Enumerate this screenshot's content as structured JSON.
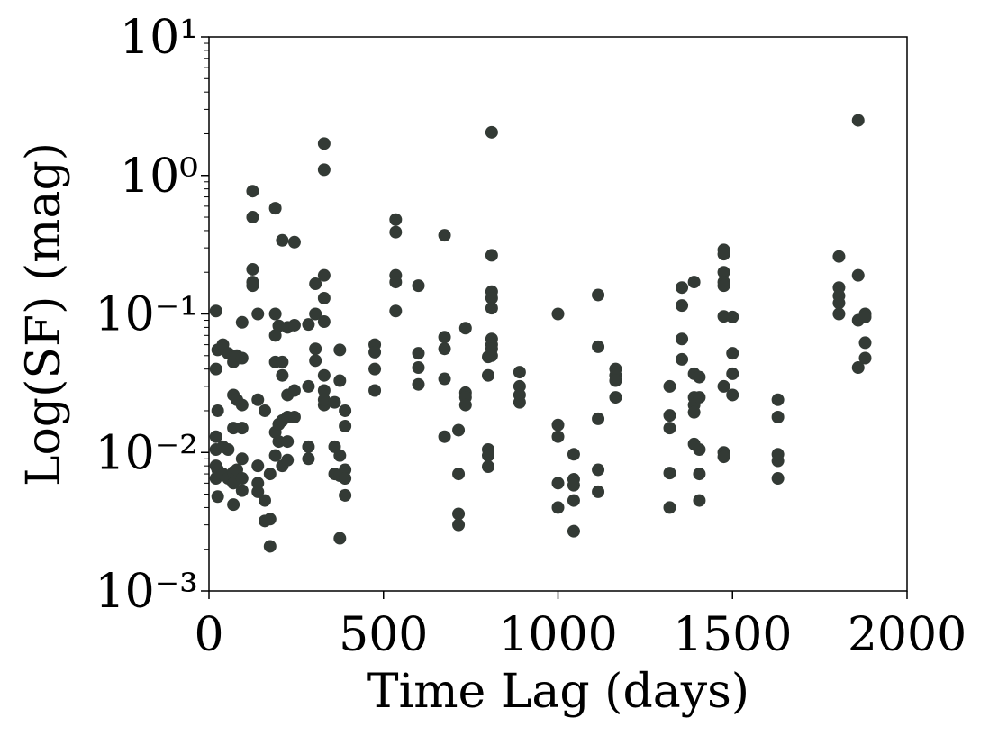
{
  "chart_data": {
    "type": "scatter",
    "xlabel": "Time Lag (days)",
    "ylabel": "Log(SF) (mag)",
    "xlim": [
      0,
      2000
    ],
    "xticks": [
      0,
      500,
      1000,
      1500,
      2000
    ],
    "ylim": [
      0.001,
      10
    ],
    "yscale": "log",
    "yticks": [
      {
        "value": 0.001,
        "label": "10⁻³"
      },
      {
        "value": 0.01,
        "label": "10⁻²"
      },
      {
        "value": 0.1,
        "label": "10⁻¹"
      },
      {
        "value": 1,
        "label": "10⁰"
      },
      {
        "value": 10,
        "label": "10¹"
      }
    ],
    "color": "#333a35",
    "x": [
      20,
      20,
      20,
      20,
      20,
      20,
      25,
      25,
      25,
      25,
      40,
      40,
      40,
      55,
      55,
      55,
      70,
      70,
      70,
      70,
      70,
      70,
      80,
      80,
      80,
      95,
      95,
      95,
      95,
      95,
      95,
      95,
      125,
      125,
      125,
      125,
      125,
      140,
      140,
      140,
      140,
      140,
      160,
      160,
      160,
      175,
      175,
      175,
      190,
      190,
      190,
      190,
      190,
      190,
      200,
      200,
      200,
      210,
      210,
      210,
      210,
      210,
      225,
      225,
      225,
      225,
      225,
      245,
      245,
      245,
      245,
      285,
      285,
      285,
      285,
      305,
      305,
      305,
      305,
      330,
      330,
      330,
      330,
      330,
      330,
      330,
      330,
      330,
      360,
      360,
      360,
      375,
      375,
      375,
      375,
      375,
      390,
      390,
      390,
      390,
      390,
      475,
      475,
      475,
      475,
      535,
      535,
      535,
      535,
      535,
      600,
      600,
      600,
      600,
      675,
      675,
      675,
      675,
      675,
      715,
      715,
      715,
      715,
      735,
      735,
      735,
      735,
      800,
      800,
      800,
      800,
      800,
      810,
      810,
      810,
      810,
      810,
      810,
      810,
      810,
      810,
      890,
      890,
      890,
      890,
      1000,
      1000,
      1000,
      1000,
      1000,
      1045,
      1045,
      1045,
      1045,
      1045,
      1115,
      1115,
      1115,
      1115,
      1115,
      1165,
      1165,
      1165,
      1165,
      1320,
      1320,
      1320,
      1320,
      1320,
      1355,
      1355,
      1355,
      1355,
      1390,
      1390,
      1390,
      1390,
      1390,
      1390,
      1405,
      1405,
      1405,
      1405,
      1405,
      1475,
      1475,
      1475,
      1475,
      1475,
      1475,
      1475,
      1475,
      1475,
      1500,
      1500,
      1500,
      1500,
      1630,
      1630,
      1630,
      1630,
      1630,
      1805,
      1805,
      1805,
      1805,
      1805,
      1860,
      1860,
      1860,
      1860,
      1880,
      1880,
      1880,
      1880
    ],
    "values": [
      0.105,
      0.04,
      0.013,
      0.0105,
      0.0065,
      0.008,
      0.055,
      0.02,
      0.0075,
      0.0048,
      0.06,
      0.011,
      0.007,
      0.052,
      0.0105,
      0.0065,
      0.045,
      0.026,
      0.015,
      0.0072,
      0.0042,
      0.006,
      0.05,
      0.024,
      0.0075,
      0.087,
      0.048,
      0.022,
      0.015,
      0.009,
      0.0065,
      0.0053,
      0.77,
      0.5,
      0.21,
      0.17,
      0.16,
      0.1,
      0.024,
      0.008,
      0.006,
      0.0052,
      0.02,
      0.0045,
      0.0032,
      0.007,
      0.0033,
      0.0021,
      0.1,
      0.045,
      0.014,
      0.0095,
      0.58,
      0.07,
      0.082,
      0.016,
      0.012,
      0.34,
      0.045,
      0.036,
      0.017,
      0.008,
      0.08,
      0.026,
      0.018,
      0.012,
      0.0088,
      0.33,
      0.083,
      0.028,
      0.018,
      0.084,
      0.03,
      0.011,
      0.009,
      0.165,
      0.1,
      0.056,
      0.046,
      1.7,
      1.1,
      0.19,
      0.13,
      0.088,
      0.036,
      0.028,
      0.022,
      0.024,
      0.023,
      0.011,
      0.007,
      0.055,
      0.033,
      0.0095,
      0.0068,
      0.0024,
      0.02,
      0.0155,
      0.0075,
      0.0065,
      0.0049,
      0.06,
      0.053,
      0.04,
      0.028,
      0.48,
      0.39,
      0.19,
      0.17,
      0.105,
      0.16,
      0.052,
      0.041,
      0.031,
      0.37,
      0.068,
      0.056,
      0.034,
      0.013,
      0.0145,
      0.007,
      0.0036,
      0.003,
      0.079,
      0.027,
      0.025,
      0.022,
      0.049,
      0.036,
      0.0105,
      0.0095,
      0.0079,
      2.05,
      0.265,
      0.145,
      0.13,
      0.11,
      0.066,
      0.06,
      0.056,
      0.05,
      0.038,
      0.03,
      0.026,
      0.023,
      0.1,
      0.0158,
      0.013,
      0.006,
      0.004,
      0.0097,
      0.0064,
      0.0058,
      0.0045,
      0.0027,
      0.137,
      0.058,
      0.0175,
      0.0075,
      0.0052,
      0.04,
      0.036,
      0.033,
      0.025,
      0.03,
      0.0185,
      0.015,
      0.0071,
      0.004,
      0.155,
      0.115,
      0.066,
      0.047,
      0.17,
      0.037,
      0.025,
      0.022,
      0.0195,
      0.0115,
      0.035,
      0.025,
      0.0105,
      0.007,
      0.0045,
      0.29,
      0.27,
      0.2,
      0.17,
      0.16,
      0.096,
      0.03,
      0.01,
      0.0093,
      0.095,
      0.052,
      0.037,
      0.026,
      0.024,
      0.018,
      0.0097,
      0.0087,
      0.0065,
      0.26,
      0.155,
      0.135,
      0.12,
      0.1,
      2.5,
      0.19,
      0.09,
      0.041,
      0.1,
      0.095,
      0.062,
      0.048
    ]
  }
}
